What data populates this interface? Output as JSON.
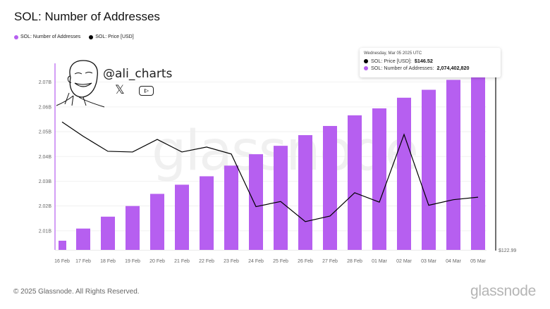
{
  "header": {
    "title": "SOL: Number of Addresses"
  },
  "legend": [
    {
      "label": "SOL: Number of Addresses",
      "color": "#b65ff0"
    },
    {
      "label": "SOL: Price [USD]",
      "color": "#000000"
    }
  ],
  "tooltip": {
    "date": "Wednesday, Mar 05 2025 UTC",
    "rows": [
      {
        "label": "SOL: Price [USD]:",
        "value": "$146.52",
        "color": "#000000"
      },
      {
        "label": "SOL: Number of Addresses:",
        "value": "2,074,402,820",
        "color": "#b65ff0"
      }
    ]
  },
  "overlay": {
    "handle": "@ali_charts",
    "x_icon": "𝕏",
    "watermark": "glassnode"
  },
  "footer": {
    "copyright": "© 2025 Glassnode. All Rights Reserved.",
    "brand": "glassnode"
  },
  "chart_data": {
    "type": "bar",
    "title": "SOL: Number of Addresses",
    "xlabel": "",
    "ylabel": "",
    "categories": [
      "16 Feb",
      "17 Feb",
      "18 Feb",
      "19 Feb",
      "20 Feb",
      "21 Feb",
      "22 Feb",
      "23 Feb",
      "24 Feb",
      "25 Feb",
      "26 Feb",
      "27 Feb",
      "28 Feb",
      "01 Mar",
      "02 Mar",
      "03 Mar",
      "04 Mar",
      "05 Mar"
    ],
    "series": [
      {
        "name": "SOL: Number of Addresses",
        "type": "bar",
        "axis": "left",
        "color": "#b65ff0",
        "values": [
          2006000000,
          2010900000,
          2015700000,
          2020000000,
          2024900000,
          2028600000,
          2032000000,
          2036300000,
          2040900000,
          2044300000,
          2048600000,
          2052300000,
          2056600000,
          2059400000,
          2063700000,
          2066900000,
          2070900000,
          2074402820
        ]
      },
      {
        "name": "SOL: Price [USD]",
        "type": "line",
        "axis": "right",
        "color": "#000000",
        "values": [
          180.1,
          173.7,
          167.0,
          166.7,
          172.3,
          166.7,
          168.9,
          165.8,
          142.3,
          144.6,
          135.6,
          138.1,
          148.5,
          144.3,
          174.5,
          142.9,
          145.4,
          146.52
        ]
      }
    ],
    "y_left": {
      "ticks": [
        2010000000,
        2020000000,
        2030000000,
        2040000000,
        2050000000,
        2060000000,
        2070000000
      ],
      "tick_labels": [
        "2.01B",
        "2.02B",
        "2.03B",
        "2.04B",
        "2.05B",
        "2.06B",
        "2.07B"
      ],
      "range": [
        2002300000,
        2077000000
      ]
    },
    "y_right": {
      "tick_labels": [
        "$122.99"
      ],
      "range": [
        122.99,
        187.1
      ]
    },
    "grid": true,
    "legend_position": "top-left"
  }
}
